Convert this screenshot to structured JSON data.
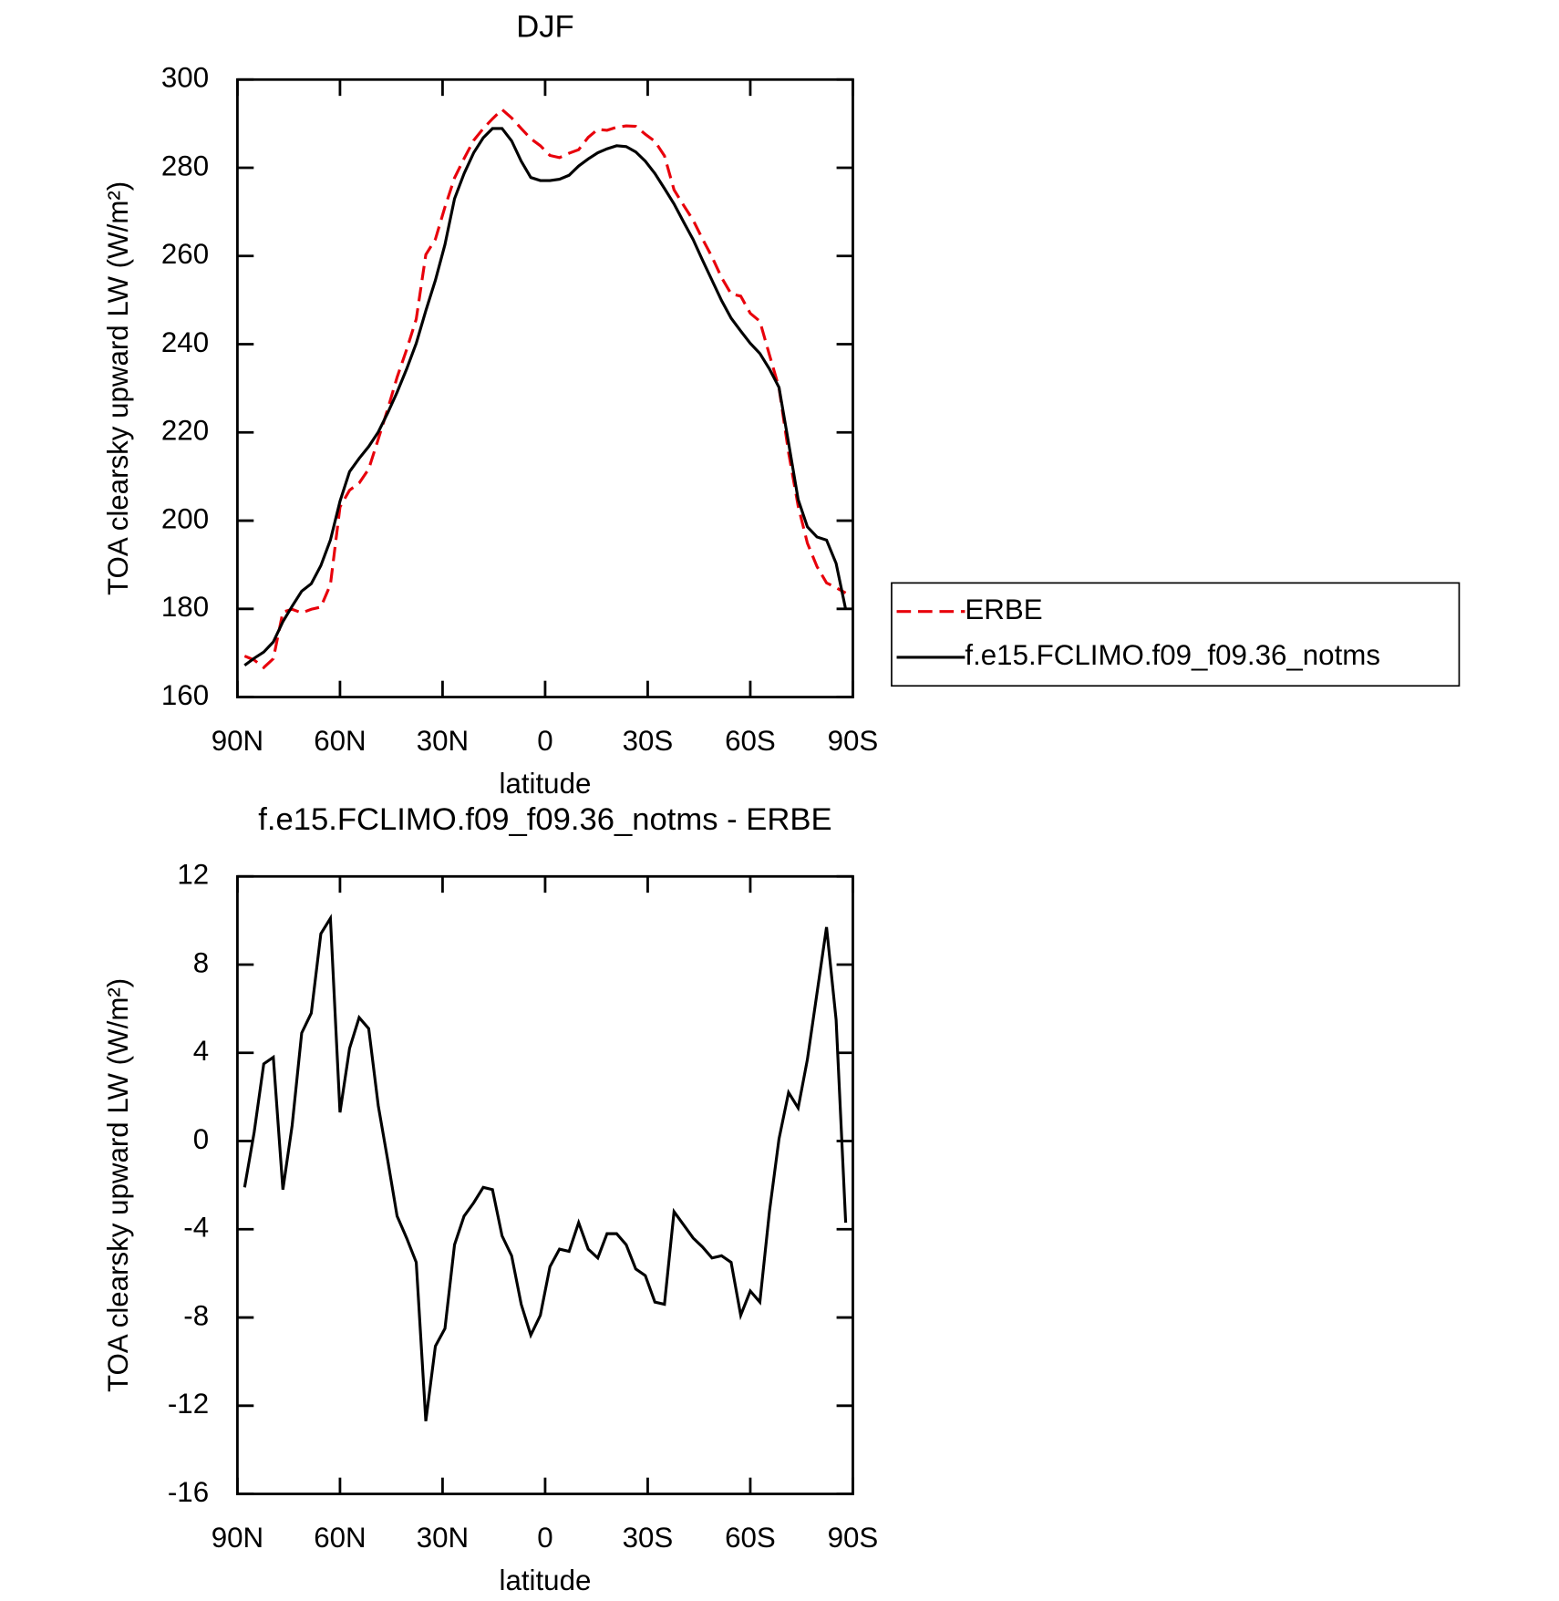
{
  "chart_data": [
    {
      "type": "line",
      "title": "DJF",
      "x_label": "latitude",
      "y_label": "TOA clearsky upward LW (W/m²)",
      "x": [
        87.9,
        85.1,
        82.3,
        79.5,
        76.7,
        74.0,
        71.2,
        68.4,
        65.6,
        62.8,
        60.0,
        57.2,
        54.4,
        51.6,
        48.8,
        46.0,
        43.3,
        40.5,
        37.7,
        34.9,
        32.1,
        29.3,
        26.5,
        23.7,
        20.9,
        18.1,
        15.4,
        12.6,
        9.8,
        7.0,
        4.2,
        1.4,
        -1.4,
        -4.2,
        -7.0,
        -9.8,
        -12.6,
        -15.4,
        -18.1,
        -20.9,
        -23.7,
        -26.5,
        -29.3,
        -32.1,
        -34.9,
        -37.7,
        -40.5,
        -43.3,
        -46.0,
        -48.8,
        -51.6,
        -54.4,
        -57.2,
        -60.0,
        -62.8,
        -65.6,
        -68.4,
        -71.2,
        -74.0,
        -76.7,
        -79.5,
        -82.3,
        -85.1,
        -87.9
      ],
      "series": [
        {
          "name": "ERBE",
          "color": "#e8000b",
          "dash": true,
          "values": [
            169.3,
            168.4,
            166.7,
            168.7,
            179.3,
            179.9,
            179.1,
            179.9,
            180.4,
            185.5,
            203.1,
            206.9,
            208.5,
            211.7,
            218.5,
            225.4,
            232.5,
            238.8,
            245.7,
            260.3,
            263.8,
            271.1,
            277.7,
            282.1,
            286.2,
            288.9,
            291.1,
            293.2,
            291.3,
            288.9,
            286.6,
            285.0,
            282.8,
            282.3,
            283.3,
            284.1,
            286.9,
            288.7,
            288.5,
            289.2,
            289.5,
            289.4,
            287.6,
            286.0,
            282.7,
            275.0,
            271.5,
            268.1,
            263.9,
            259.8,
            255.1,
            251.4,
            250.9,
            247.0,
            245.2,
            237.6,
            230.1,
            215.4,
            203.3,
            194.9,
            189.6,
            185.9,
            184.8,
            183.6
          ]
        },
        {
          "name": "f.e15.FCLIMO.f09_f09.36_notms",
          "color": "#000000",
          "dash": false,
          "values": [
            167.2,
            168.8,
            170.2,
            172.5,
            177.1,
            180.6,
            184.0,
            185.7,
            189.8,
            195.6,
            204.4,
            211.1,
            214.1,
            216.8,
            220.1,
            224.5,
            229.1,
            234.4,
            240.2,
            247.6,
            254.5,
            262.6,
            273.0,
            278.7,
            283.4,
            286.8,
            288.9,
            288.9,
            286.1,
            281.5,
            277.8,
            277.1,
            277.1,
            277.4,
            278.3,
            280.4,
            282.0,
            283.4,
            284.3,
            285.0,
            284.8,
            283.6,
            281.5,
            278.7,
            275.3,
            271.8,
            267.7,
            263.7,
            259.1,
            254.5,
            249.9,
            245.9,
            243.0,
            240.2,
            237.9,
            234.4,
            230.2,
            217.6,
            204.8,
            198.6,
            196.3,
            195.6,
            190.3,
            179.9
          ]
        }
      ],
      "xlim": [
        90,
        -90
      ],
      "xticks": [
        {
          "value": 90,
          "label": "90N"
        },
        {
          "value": 60,
          "label": "60N"
        },
        {
          "value": 30,
          "label": "30N"
        },
        0,
        {
          "value": -30,
          "label": "30S"
        },
        {
          "value": -60,
          "label": "60S"
        },
        {
          "value": -90,
          "label": "90S"
        }
      ],
      "ylim": [
        160,
        300
      ],
      "yticks": [
        160,
        180,
        200,
        220,
        240,
        260,
        280,
        300
      ],
      "legend": "right"
    },
    {
      "type": "line",
      "title": "f.e15.FCLIMO.f09_f09.36_notms - ERBE",
      "x_label": "latitude",
      "y_label": "TOA clearsky upward LW (W/m²)",
      "x": [
        87.9,
        85.1,
        82.3,
        79.5,
        76.7,
        74.0,
        71.2,
        68.4,
        65.6,
        62.8,
        60.0,
        57.2,
        54.4,
        51.6,
        48.8,
        46.0,
        43.3,
        40.5,
        37.7,
        34.9,
        32.1,
        29.3,
        26.5,
        23.7,
        20.9,
        18.1,
        15.4,
        12.6,
        9.8,
        7.0,
        4.2,
        1.4,
        -1.4,
        -4.2,
        -7.0,
        -9.8,
        -12.6,
        -15.4,
        -18.1,
        -20.9,
        -23.7,
        -26.5,
        -29.3,
        -32.1,
        -34.9,
        -37.7,
        -40.5,
        -43.3,
        -46.0,
        -48.8,
        -51.6,
        -54.4,
        -57.2,
        -60.0,
        -62.8,
        -65.6,
        -68.4,
        -71.2,
        -74.0,
        -76.7,
        -79.5,
        -82.3,
        -85.1,
        -87.9
      ],
      "series": [
        {
          "color": "#000000",
          "dash": false,
          "values": [
            -2.1,
            0.4,
            3.5,
            3.8,
            -2.2,
            0.7,
            4.9,
            5.8,
            9.4,
            10.1,
            1.3,
            4.2,
            5.6,
            5.1,
            1.6,
            -0.9,
            -3.4,
            -4.4,
            -5.5,
            -12.7,
            -9.3,
            -8.5,
            -4.7,
            -3.4,
            -2.8,
            -2.1,
            -2.2,
            -4.3,
            -5.2,
            -7.4,
            -8.8,
            -7.9,
            -5.7,
            -4.9,
            -5.0,
            -3.7,
            -4.9,
            -5.3,
            -4.2,
            -4.2,
            -4.7,
            -5.8,
            -6.1,
            -7.3,
            -7.4,
            -3.2,
            -3.8,
            -4.4,
            -4.8,
            -5.3,
            -5.2,
            -5.5,
            -7.9,
            -6.8,
            -7.3,
            -3.2,
            0.1,
            2.2,
            1.5,
            3.7,
            6.7,
            9.7,
            5.5,
            -3.7
          ]
        }
      ],
      "xlim": [
        90,
        -90
      ],
      "xticks": [
        {
          "value": 90,
          "label": "90N"
        },
        {
          "value": 60,
          "label": "60N"
        },
        {
          "value": 30,
          "label": "30N"
        },
        0,
        {
          "value": -30,
          "label": "30S"
        },
        {
          "value": -60,
          "label": "60S"
        },
        {
          "value": -90,
          "label": "90S"
        }
      ],
      "ylim": [
        -16,
        12
      ],
      "yticks": [
        -16,
        -12,
        -8,
        -4,
        0,
        4,
        8,
        12
      ]
    }
  ]
}
